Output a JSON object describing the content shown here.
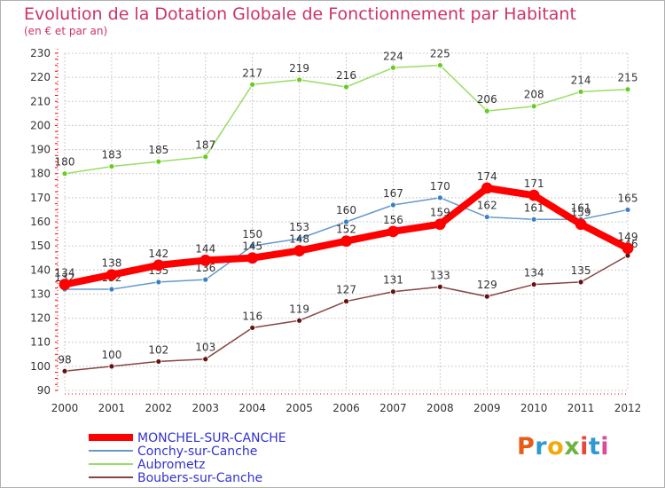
{
  "chart_data": {
    "type": "line",
    "title": "Evolution de la Dotation Globale de Fonctionnement par Habitant",
    "subtitle": "(en € et par an)",
    "xlabel": "",
    "ylabel": "",
    "ylim": [
      90,
      230
    ],
    "yticks": [
      90,
      100,
      110,
      120,
      130,
      140,
      150,
      160,
      170,
      180,
      190,
      200,
      210,
      220,
      230
    ],
    "grid": true,
    "legend_position": "bottom-left",
    "x": [
      "2000",
      "2001",
      "2002",
      "2003",
      "2004",
      "2005",
      "2006",
      "2007",
      "2008",
      "2009",
      "2010",
      "2011",
      "2012"
    ],
    "series": [
      {
        "name": "MONCHEL-SUR-CANCHE",
        "color": "#ff0000",
        "point_color": "#ff0000",
        "highlight": true,
        "values": [
          134,
          138,
          142,
          144,
          145,
          148,
          152,
          156,
          159,
          174,
          171,
          159,
          149
        ]
      },
      {
        "name": "Conchy-sur-Canche",
        "color": "#6699cc",
        "point_color": "#3d7fc4",
        "values": [
          132,
          132,
          135,
          136,
          150,
          153,
          160,
          167,
          170,
          162,
          161,
          161,
          165
        ]
      },
      {
        "name": "Aubrometz",
        "color": "#99dd66",
        "point_color": "#66cc22",
        "values": [
          180,
          183,
          185,
          187,
          217,
          219,
          216,
          224,
          225,
          206,
          208,
          214,
          215
        ]
      },
      {
        "name": "Boubers-sur-Canche",
        "color": "#884444",
        "point_color": "#661111",
        "values": [
          98,
          100,
          102,
          103,
          116,
          119,
          127,
          131,
          133,
          129,
          134,
          135,
          146
        ]
      }
    ]
  },
  "colors": {
    "title": "#cc3366",
    "axis_labels": "#333333",
    "legend_text": "#3333cc",
    "grid": "#cccccc",
    "axis": "#ff0000"
  },
  "logo": {
    "text": "Proxiti",
    "colors": [
      "#e85c1a",
      "#2d9ad6",
      "#f3a90b",
      "#6db33f",
      "#e8483b",
      "#2d9ad6",
      "#d94a9a"
    ]
  }
}
